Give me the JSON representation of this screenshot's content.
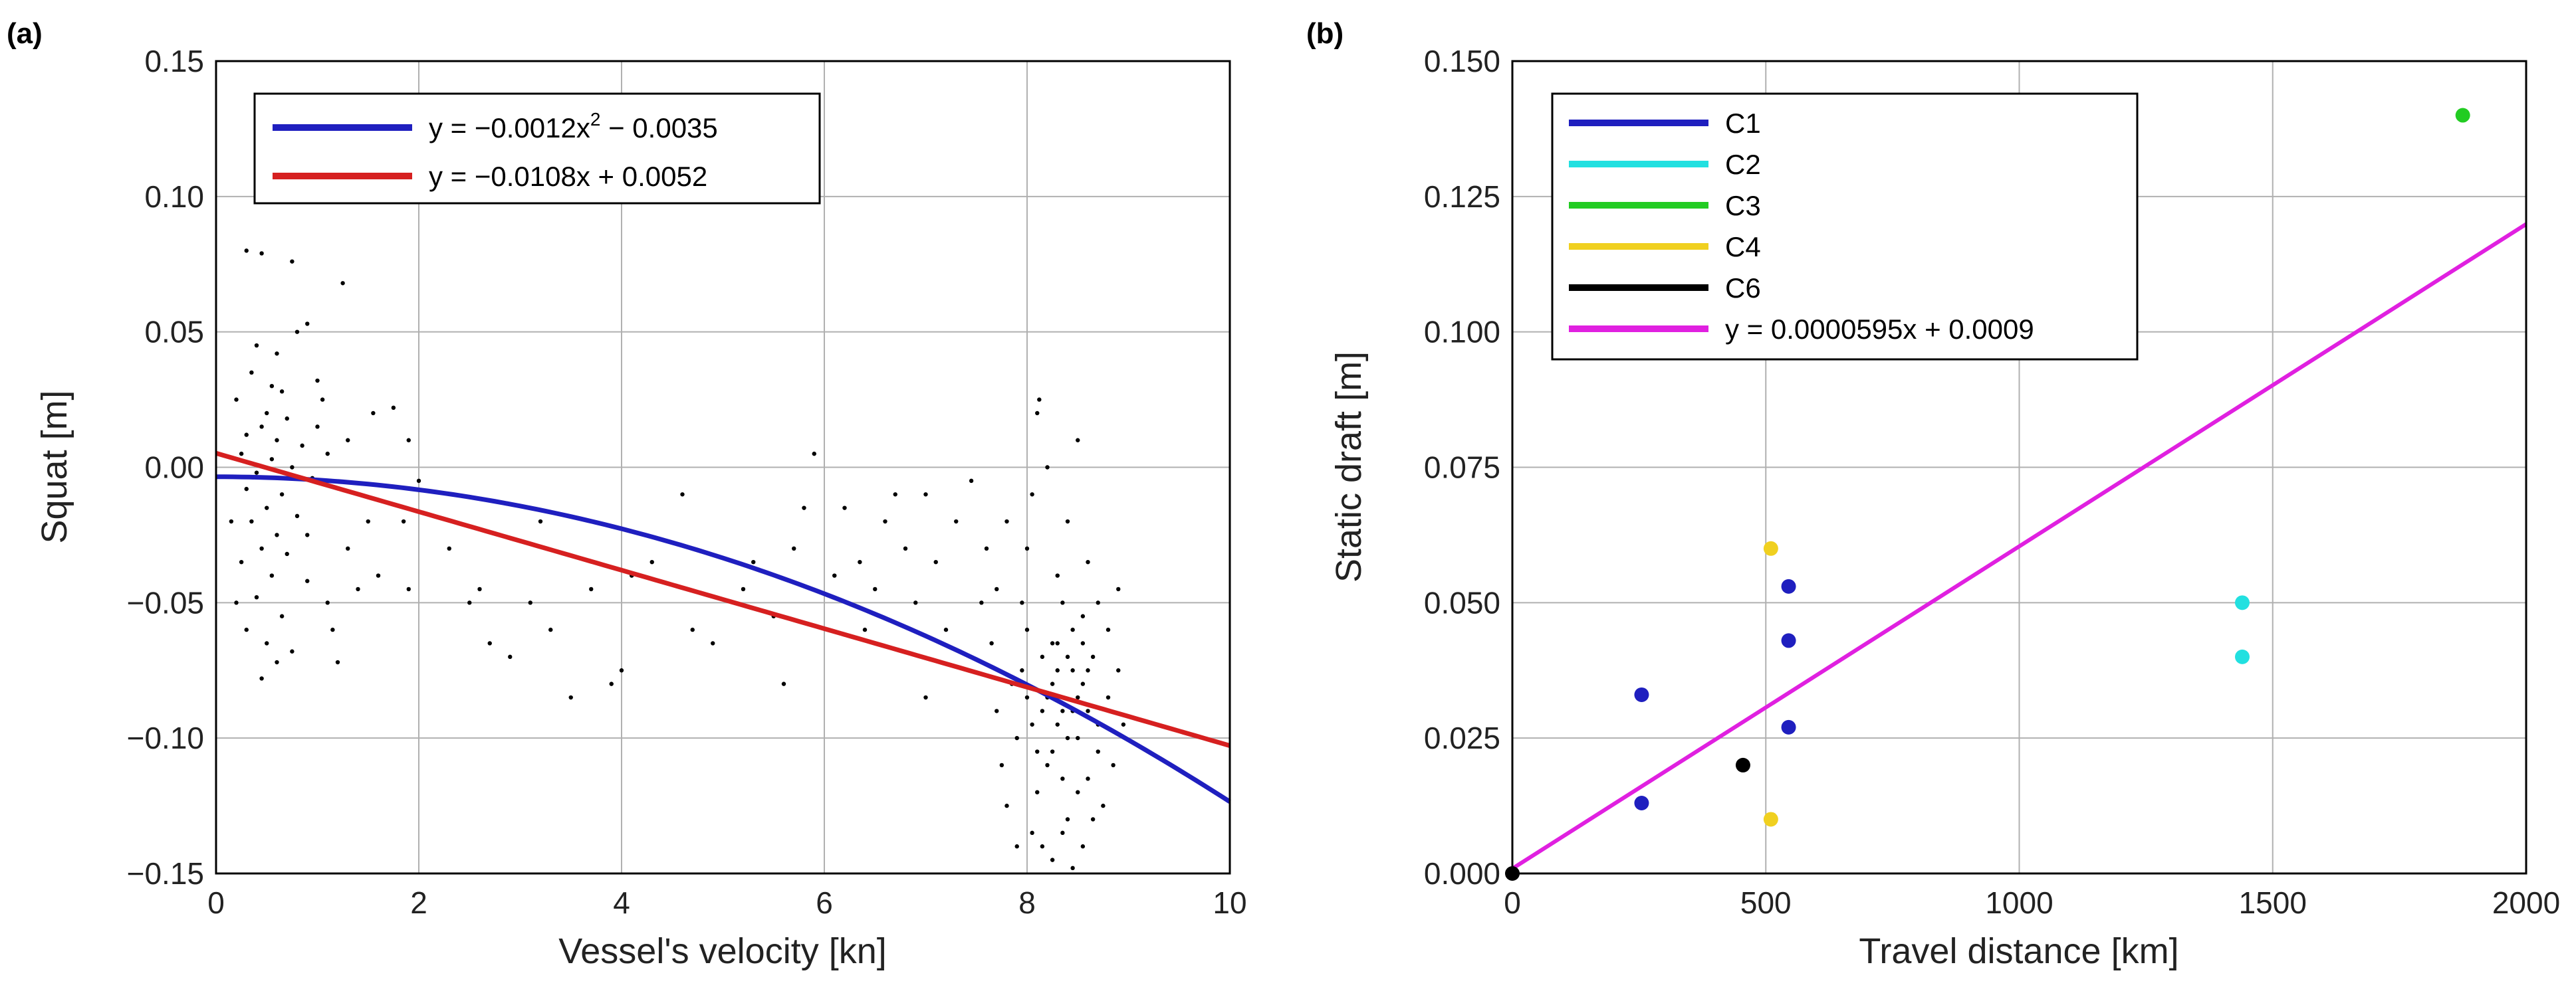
{
  "chart_data": [
    {
      "panel_label": "(a)",
      "type": "scatter",
      "xlabel": "Vessel's velocity [kn]",
      "ylabel": "Squat [m]",
      "xlim": [
        0,
        10
      ],
      "ylim": [
        -0.15,
        0.15
      ],
      "x_ticks": [
        0,
        2,
        4,
        6,
        8,
        10
      ],
      "x_tick_labels": [
        "0",
        "2",
        "4",
        "6",
        "8",
        "10"
      ],
      "y_ticks": [
        -0.15,
        -0.1,
        -0.05,
        0.0,
        0.05,
        0.1,
        0.15
      ],
      "y_tick_labels": [
        "−0.15",
        "−0.10",
        "−0.05",
        "0.00",
        "0.05",
        "0.10",
        "0.15"
      ],
      "grid": true,
      "legend_position": "top-left",
      "point_color": "#000000",
      "scatter_points": [
        [
          0.3,
          0.08
        ],
        [
          0.45,
          0.079
        ],
        [
          0.75,
          0.076
        ],
        [
          1.25,
          0.068
        ],
        [
          0.9,
          0.053
        ],
        [
          0.8,
          0.05
        ],
        [
          0.4,
          0.045
        ],
        [
          0.6,
          0.042
        ],
        [
          0.35,
          0.035
        ],
        [
          0.55,
          0.03
        ],
        [
          0.65,
          0.028
        ],
        [
          1.0,
          0.032
        ],
        [
          0.2,
          0.025
        ],
        [
          0.5,
          0.02
        ],
        [
          0.7,
          0.018
        ],
        [
          0.45,
          0.015
        ],
        [
          0.3,
          0.012
        ],
        [
          0.6,
          0.01
        ],
        [
          0.85,
          0.008
        ],
        [
          0.25,
          0.005
        ],
        [
          0.55,
          0.003
        ],
        [
          0.75,
          0.0
        ],
        [
          0.4,
          -0.002
        ],
        [
          0.95,
          -0.004
        ],
        [
          0.3,
          -0.008
        ],
        [
          0.65,
          -0.01
        ],
        [
          0.5,
          -0.015
        ],
        [
          0.8,
          -0.018
        ],
        [
          0.35,
          -0.02
        ],
        [
          0.6,
          -0.025
        ],
        [
          0.45,
          -0.03
        ],
        [
          0.7,
          -0.032
        ],
        [
          0.25,
          -0.035
        ],
        [
          0.55,
          -0.04
        ],
        [
          0.9,
          -0.042
        ],
        [
          0.4,
          -0.048
        ],
        [
          0.65,
          -0.055
        ],
        [
          0.3,
          -0.06
        ],
        [
          0.5,
          -0.065
        ],
        [
          0.75,
          -0.068
        ],
        [
          0.6,
          -0.072
        ],
        [
          0.45,
          -0.078
        ],
        [
          1.2,
          -0.072
        ],
        [
          1.1,
          -0.05
        ],
        [
          1.4,
          -0.045
        ],
        [
          1.6,
          -0.04
        ],
        [
          1.3,
          -0.03
        ],
        [
          1.5,
          -0.02
        ],
        [
          1.1,
          0.005
        ],
        [
          1.3,
          0.01
        ],
        [
          1.55,
          0.02
        ],
        [
          1.75,
          0.022
        ],
        [
          1.9,
          0.01
        ],
        [
          2.0,
          -0.005
        ],
        [
          1.85,
          -0.02
        ],
        [
          1.9,
          -0.045
        ],
        [
          1.15,
          -0.06
        ],
        [
          0.2,
          -0.05
        ],
        [
          0.15,
          -0.02
        ],
        [
          1.0,
          0.015
        ],
        [
          1.05,
          0.025
        ],
        [
          0.9,
          -0.025
        ],
        [
          2.3,
          -0.03
        ],
        [
          2.5,
          -0.05
        ],
        [
          2.7,
          -0.065
        ],
        [
          2.9,
          -0.07
        ],
        [
          3.1,
          -0.05
        ],
        [
          3.3,
          -0.06
        ],
        [
          3.5,
          -0.085
        ],
        [
          3.7,
          -0.045
        ],
        [
          3.9,
          -0.08
        ],
        [
          4.1,
          -0.04
        ],
        [
          4.3,
          -0.035
        ],
        [
          4.6,
          -0.01
        ],
        [
          4.9,
          -0.065
        ],
        [
          5.2,
          -0.045
        ],
        [
          5.5,
          -0.055
        ],
        [
          5.6,
          -0.08
        ],
        [
          5.7,
          -0.03
        ],
        [
          5.9,
          0.005
        ],
        [
          6.1,
          -0.04
        ],
        [
          6.2,
          -0.015
        ],
        [
          6.35,
          -0.035
        ],
        [
          6.5,
          -0.045
        ],
        [
          6.6,
          -0.02
        ],
        [
          6.8,
          -0.03
        ],
        [
          6.9,
          -0.05
        ],
        [
          7.0,
          -0.01
        ],
        [
          7.1,
          -0.035
        ],
        [
          7.2,
          -0.06
        ],
        [
          7.3,
          -0.02
        ],
        [
          7.45,
          -0.005
        ],
        [
          7.55,
          -0.05
        ],
        [
          7.0,
          -0.085
        ],
        [
          6.7,
          -0.01
        ],
        [
          6.4,
          -0.06
        ],
        [
          5.8,
          -0.015
        ],
        [
          5.3,
          -0.035
        ],
        [
          4.7,
          -0.06
        ],
        [
          4.0,
          -0.075
        ],
        [
          3.2,
          -0.02
        ],
        [
          2.6,
          -0.045
        ],
        [
          7.65,
          -0.065
        ],
        [
          7.7,
          -0.09
        ],
        [
          7.75,
          -0.11
        ],
        [
          7.8,
          -0.125
        ],
        [
          7.85,
          -0.08
        ],
        [
          7.9,
          -0.1
        ],
        [
          7.95,
          -0.075
        ],
        [
          8.0,
          -0.06
        ],
        [
          8.05,
          -0.095
        ],
        [
          8.1,
          -0.12
        ],
        [
          8.15,
          -0.07
        ],
        [
          8.2,
          -0.085
        ],
        [
          8.25,
          -0.105
        ],
        [
          8.3,
          -0.065
        ],
        [
          8.35,
          -0.09
        ],
        [
          8.4,
          -0.13
        ],
        [
          8.45,
          -0.075
        ],
        [
          8.5,
          -0.1
        ],
        [
          8.55,
          -0.08
        ],
        [
          8.6,
          -0.115
        ],
        [
          8.65,
          -0.07
        ],
        [
          8.7,
          -0.095
        ],
        [
          8.75,
          -0.125
        ],
        [
          8.8,
          -0.085
        ],
        [
          8.85,
          -0.11
        ],
        [
          8.9,
          -0.075
        ],
        [
          8.95,
          -0.095
        ],
        [
          8.0,
          -0.03
        ],
        [
          8.05,
          -0.01
        ],
        [
          8.1,
          0.02
        ],
        [
          8.12,
          0.025
        ],
        [
          8.2,
          0.0
        ],
        [
          8.3,
          -0.04
        ],
        [
          8.4,
          -0.02
        ],
        [
          8.5,
          0.01
        ],
        [
          8.55,
          -0.055
        ],
        [
          8.6,
          -0.035
        ],
        [
          8.7,
          -0.05
        ],
        [
          8.8,
          -0.06
        ],
        [
          8.9,
          -0.045
        ],
        [
          8.15,
          -0.14
        ],
        [
          8.25,
          -0.145
        ],
        [
          8.35,
          -0.135
        ],
        [
          8.45,
          -0.148
        ],
        [
          8.55,
          -0.14
        ],
        [
          8.65,
          -0.13
        ],
        [
          8.05,
          -0.135
        ],
        [
          7.9,
          -0.14
        ],
        [
          7.7,
          -0.045
        ],
        [
          7.6,
          -0.03
        ],
        [
          7.8,
          -0.02
        ],
        [
          7.95,
          -0.05
        ],
        [
          8.35,
          -0.05
        ],
        [
          8.45,
          -0.06
        ],
        [
          8.25,
          -0.08
        ],
        [
          8.15,
          -0.09
        ],
        [
          8.4,
          -0.07
        ],
        [
          8.5,
          -0.085
        ],
        [
          8.3,
          -0.095
        ],
        [
          8.6,
          -0.09
        ],
        [
          8.2,
          -0.11
        ],
        [
          8.4,
          -0.1
        ],
        [
          8.35,
          -0.115
        ],
        [
          8.5,
          -0.12
        ],
        [
          8.1,
          -0.105
        ],
        [
          8.0,
          -0.085
        ],
        [
          8.7,
          -0.105
        ],
        [
          8.45,
          -0.09
        ],
        [
          8.3,
          -0.075
        ],
        [
          8.55,
          -0.065
        ],
        [
          8.25,
          -0.065
        ],
        [
          8.6,
          -0.075
        ]
      ],
      "series": [
        {
          "name": "y = −0.0012x² − 0.0035",
          "name_parts": [
            "y = −0.0012x",
            "2",
            " − 0.0035"
          ],
          "type": "curve",
          "color": "#1f1fbf",
          "a2": -0.0012,
          "a1": 0.0,
          "a0": -0.0035
        },
        {
          "name": "y = −0.0108x + 0.0052",
          "type": "line",
          "color": "#d62020",
          "a2": 0.0,
          "a1": -0.0108,
          "a0": 0.0052
        }
      ]
    },
    {
      "panel_label": "(b)",
      "type": "scatter",
      "xlabel": "Travel distance [km]",
      "ylabel": "Static draft [m]",
      "xlim": [
        0,
        2000
      ],
      "ylim": [
        0.0,
        0.15
      ],
      "x_ticks": [
        0,
        500,
        1000,
        1500,
        2000
      ],
      "x_tick_labels": [
        "0",
        "500",
        "1000",
        "1500",
        "2000"
      ],
      "y_ticks": [
        0.0,
        0.025,
        0.05,
        0.075,
        0.1,
        0.125,
        0.15
      ],
      "y_tick_labels": [
        "0.000",
        "0.025",
        "0.050",
        "0.075",
        "0.100",
        "0.125",
        "0.150"
      ],
      "grid": true,
      "legend_position": "top-left",
      "series": [
        {
          "name": "C1",
          "color": "#1f1fbf",
          "points": [
            [
              255,
              0.033
            ],
            [
              255,
              0.013
            ],
            [
              545,
              0.053
            ],
            [
              545,
              0.043
            ],
            [
              545,
              0.027
            ]
          ]
        },
        {
          "name": "C2",
          "color": "#22e0e0",
          "points": [
            [
              1440,
              0.05
            ],
            [
              1440,
              0.04
            ]
          ]
        },
        {
          "name": "C3",
          "color": "#22cc22",
          "points": [
            [
              1875,
              0.14
            ]
          ]
        },
        {
          "name": "C4",
          "color": "#f0d020",
          "points": [
            [
              510,
              0.06
            ],
            [
              510,
              0.01
            ]
          ]
        },
        {
          "name": "C6",
          "color": "#000000",
          "points": [
            [
              455,
              0.02
            ],
            [
              0,
              0.0
            ]
          ]
        }
      ],
      "fit": {
        "name": "y = 0.0000595x + 0.0009",
        "color": "#e020e0",
        "slope": 5.95e-05,
        "intercept": 0.0009
      }
    }
  ]
}
